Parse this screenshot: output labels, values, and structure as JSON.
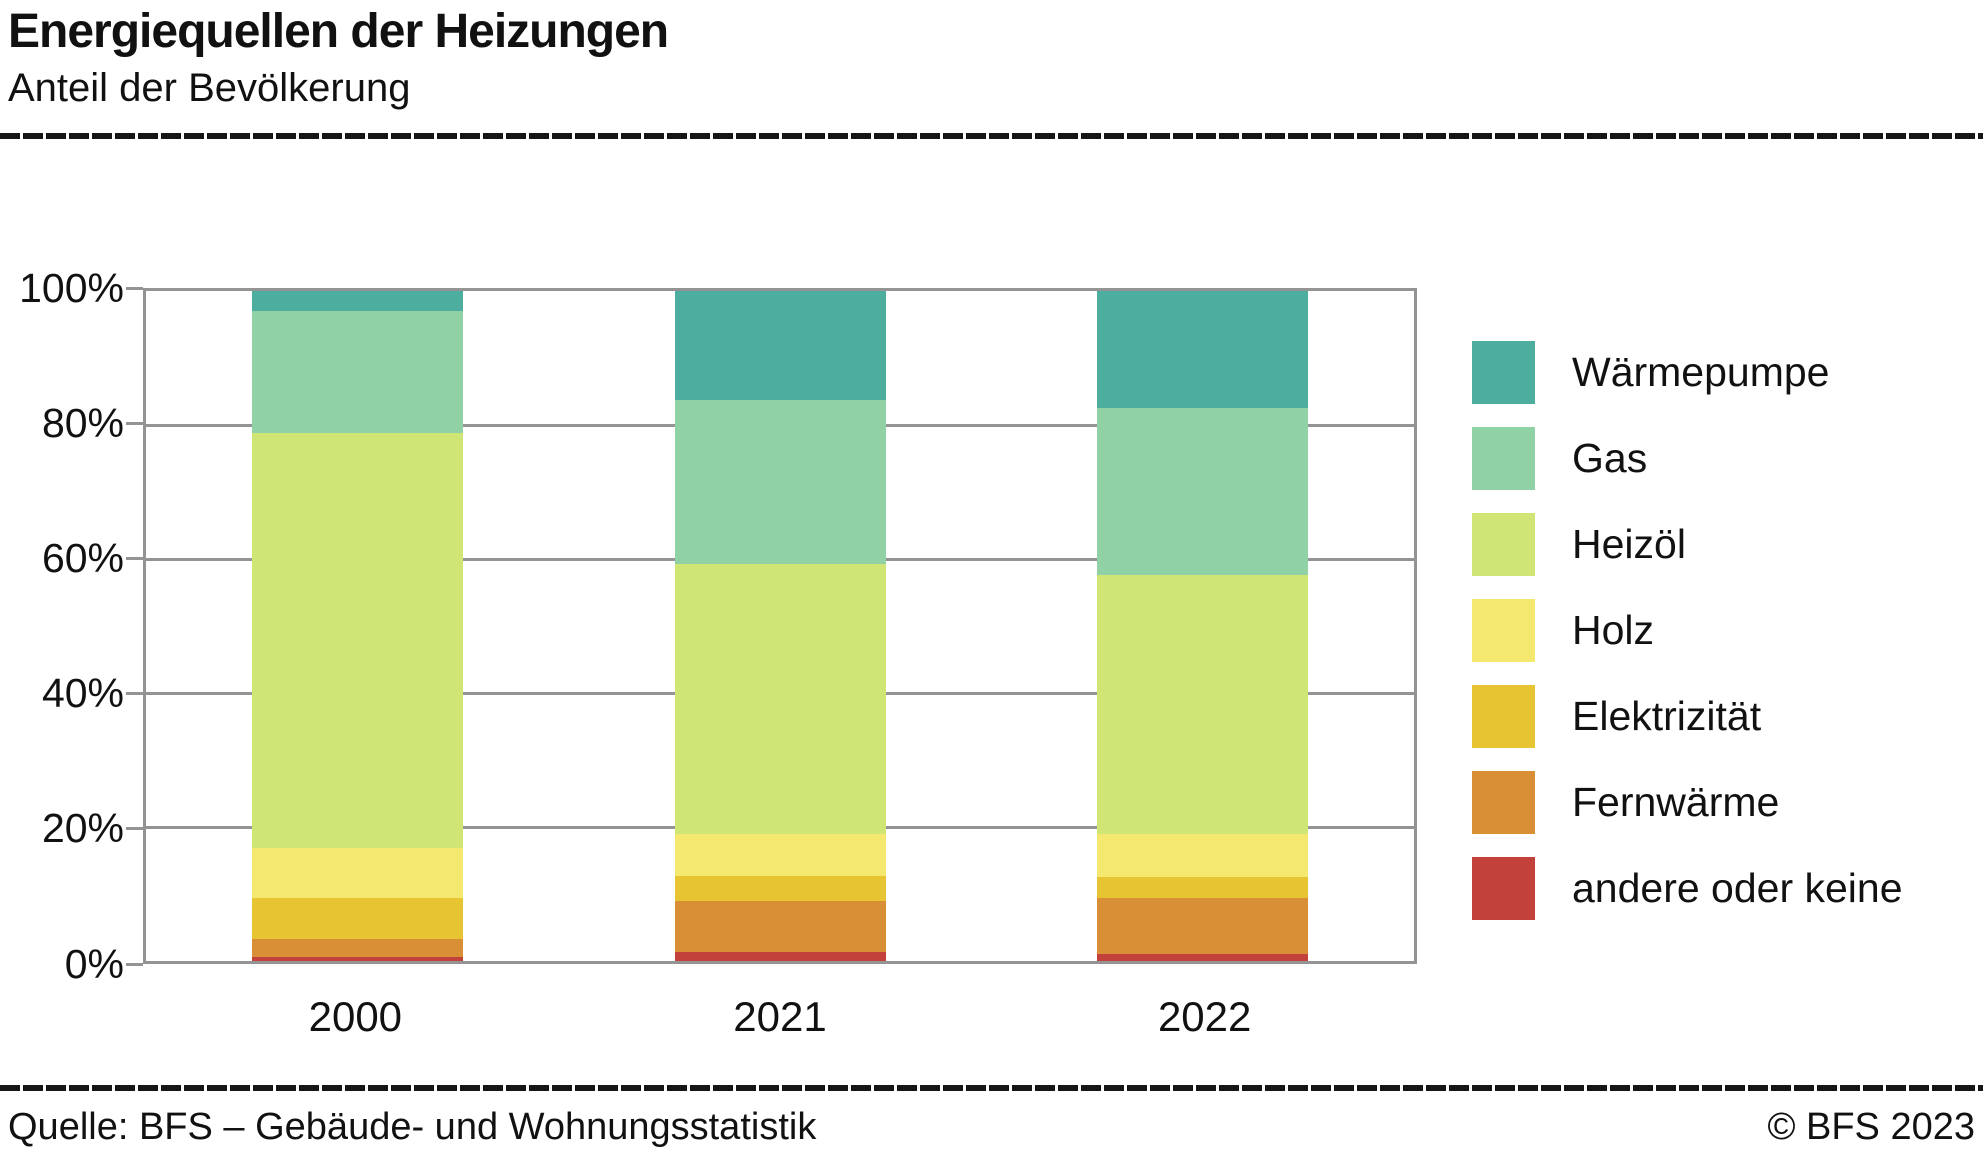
{
  "header": {
    "title": "Energiequellen der Heizungen",
    "subtitle": "Anteil der Bevölkerung"
  },
  "footer": {
    "source": "Quelle: BFS – Gebäude- und Wohnungsstatistik",
    "copyright": "© BFS 2023"
  },
  "colors": {
    "grid": "#949494",
    "rule": "#161616"
  },
  "chart_data": {
    "type": "bar",
    "stacked": true,
    "title": "Energiequellen der Heizungen",
    "subtitle": "Anteil der Bevölkerung",
    "unit": "%",
    "categories": [
      "2000",
      "2021",
      "2022"
    ],
    "series": [
      {
        "name": "Wärmepumpe",
        "color": "#4dae9f",
        "values": [
          3.0,
          16.3,
          17.5
        ]
      },
      {
        "name": "Gas",
        "color": "#91d1a6",
        "values": [
          18.2,
          24.5,
          24.9
        ]
      },
      {
        "name": "Heizöl",
        "color": "#cfe675",
        "values": [
          62.0,
          40.3,
          38.6
        ]
      },
      {
        "name": "Holz",
        "color": "#f4e96e",
        "values": [
          7.4,
          6.2,
          6.4
        ]
      },
      {
        "name": "Elektrizität",
        "color": "#e7c432",
        "values": [
          6.1,
          3.7,
          3.2
        ]
      },
      {
        "name": "Fernwärme",
        "color": "#d98f36",
        "values": [
          2.7,
          7.7,
          8.3
        ]
      },
      {
        "name": "andere oder keine",
        "color": "#c2413a",
        "values": [
          0.6,
          1.3,
          1.1
        ]
      }
    ],
    "ylim": [
      0,
      100
    ],
    "yticks": [
      {
        "value": 0,
        "label": "0%"
      },
      {
        "value": 20,
        "label": "20%"
      },
      {
        "value": 40,
        "label": "40%"
      },
      {
        "value": 60,
        "label": "60%"
      },
      {
        "value": 80,
        "label": "80%"
      },
      {
        "value": 100,
        "label": "100%"
      }
    ],
    "grid": true,
    "legend_position": "right"
  }
}
